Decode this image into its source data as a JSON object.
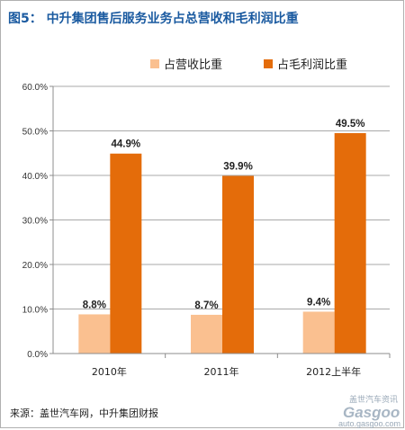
{
  "chart_data": {
    "type": "bar",
    "title": "图5：  中升集团售后服务业务占总营收和毛利润比重",
    "categories": [
      "2010年",
      "2011年",
      "2012上半年"
    ],
    "series": [
      {
        "name": "占营收比重",
        "color": "#fac090",
        "values": [
          8.8,
          8.7,
          9.4
        ],
        "labels": [
          "8.8%",
          "8.7%",
          "9.4%"
        ]
      },
      {
        "name": "占毛利润比重",
        "color": "#e46c0a",
        "values": [
          44.9,
          39.9,
          49.5
        ],
        "labels": [
          "44.9%",
          "39.9%",
          "49.5%"
        ]
      }
    ],
    "yticks": [
      "0.0%",
      "10.0%",
      "20.0%",
      "30.0%",
      "40.0%",
      "50.0%",
      "60.0%"
    ],
    "ylim": [
      0,
      60
    ],
    "grid": true,
    "legend": "top",
    "source": "来源：盖世汽车网，中升集团财报"
  },
  "watermark": {
    "line1": "盖世汽车资讯",
    "logo": "Gasgoo",
    "url": "auto.gasgoo.com"
  }
}
